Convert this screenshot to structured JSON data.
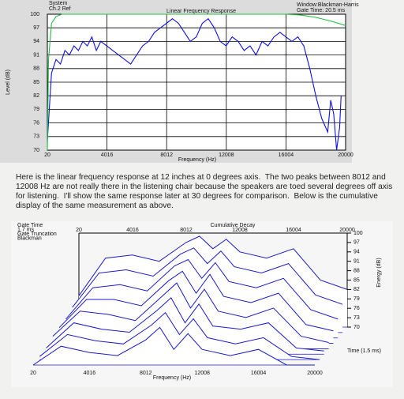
{
  "chart_data": [
    {
      "type": "line",
      "title": "Linear Frequency Response",
      "xlabel": "Frequency (Hz)",
      "ylabel": "Level (dB)",
      "annotations": [
        "Window:Blackman-Harris",
        "Gate Time: 20.5 ms"
      ],
      "xlim": [
        20,
        20000
      ],
      "ylim": [
        70,
        100
      ],
      "xticks": [
        20,
        4016,
        8012,
        12008,
        16004,
        20000
      ],
      "yticks": [
        70,
        73,
        76,
        79,
        82,
        85,
        88,
        91,
        94,
        97,
        100
      ],
      "grid": true,
      "series": [
        {
          "name": "System",
          "color": "#1010e0",
          "x": [
            20,
            300,
            600,
            900,
            1200,
            1500,
            1800,
            2100,
            2400,
            2700,
            3000,
            3300,
            3600,
            4000,
            4400,
            4800,
            5200,
            5600,
            6000,
            6400,
            6800,
            7200,
            7600,
            8000,
            8400,
            8800,
            9200,
            9600,
            10000,
            10400,
            10800,
            11200,
            11600,
            12000,
            12400,
            12800,
            13200,
            13600,
            14000,
            14400,
            14800,
            15200,
            15600,
            16000,
            16400,
            16800,
            17200,
            17600,
            18000,
            18400,
            18800,
            19000,
            19200,
            19400,
            19600,
            19700
          ],
          "values": [
            72,
            87,
            90,
            89,
            92,
            91,
            93,
            92,
            94,
            93,
            95,
            92,
            94,
            93,
            92,
            91,
            90,
            89,
            91,
            93,
            94,
            96,
            97,
            98,
            99,
            98,
            96,
            94,
            95,
            98,
            99,
            97,
            94,
            93,
            95,
            94,
            92,
            93,
            91,
            94,
            93,
            95,
            96,
            95,
            94,
            95,
            93,
            88,
            82,
            77,
            74,
            81,
            78,
            70,
            75,
            82
          ]
        },
        {
          "name": "Ch.2 Ref",
          "color": "#20c040",
          "x": [
            20,
            100,
            300,
            600,
            1000,
            2000,
            16000,
            17000,
            18000,
            19000,
            20000
          ],
          "values": [
            70,
            90,
            98,
            99.5,
            100,
            100,
            100,
            99.8,
            99.3,
            98.5,
            97.5
          ]
        }
      ]
    },
    {
      "type": "waterfall",
      "title": "Cumulative Decay",
      "xlabel": "Frequency (Hz)",
      "ylabel": "Energy (dB)",
      "time_label": "Time (1.5 ms)",
      "annotations": [
        "Gate Time",
        "1.7 ms",
        "Gate Truncation",
        "Blackman"
      ],
      "xlim": [
        20,
        20000
      ],
      "ylim": [
        70,
        100
      ],
      "xticks": [
        20,
        4016,
        8012,
        12008,
        16004,
        20000
      ],
      "yticks": [
        100,
        97,
        94,
        91,
        88,
        85,
        82,
        79,
        76,
        73,
        70
      ],
      "color": "#1a1acc",
      "x": [
        20,
        2000,
        4000,
        6000,
        8000,
        9000,
        10000,
        11000,
        12000,
        14000,
        16000,
        18000,
        20000
      ],
      "series": [
        {
          "values": [
            80,
            92,
            93,
            91,
            97,
            99,
            95,
            98,
            94,
            92,
            95,
            85,
            82
          ]
        },
        {
          "values": [
            78,
            89,
            90,
            88,
            95,
            97,
            92,
            96,
            91,
            89,
            92,
            82,
            79
          ]
        },
        {
          "values": [
            76,
            86,
            87,
            85,
            93,
            95,
            89,
            94,
            88,
            86,
            89,
            79,
            76
          ]
        },
        {
          "values": [
            75,
            84,
            84,
            82,
            90,
            93,
            86,
            92,
            85,
            83,
            86,
            76,
            74
          ]
        },
        {
          "values": [
            74,
            82,
            81,
            79,
            87,
            91,
            83,
            89,
            82,
            80,
            83,
            74,
            72
          ]
        },
        {
          "values": [
            72,
            80,
            78,
            77,
            84,
            88,
            80,
            86,
            79,
            78,
            80,
            72,
            71
          ]
        },
        {
          "values": [
            71,
            78,
            76,
            75,
            81,
            85,
            78,
            83,
            77,
            75,
            77,
            71,
            70
          ]
        },
        {
          "values": [
            70,
            76,
            74,
            73,
            78,
            82,
            75,
            80,
            75,
            73,
            75,
            70,
            70
          ]
        }
      ]
    }
  ],
  "text": "Here is the linear frequency response at 12 inches at 0 degrees axis.  The two peaks between 8012 and 12008 Hz are not really there in the listening chair because the speakers are toed several degrees off axis for listening.  I'll show the same response later at 30 degrees for comparison.  Below is the cumulative display of the same measurement as above."
}
